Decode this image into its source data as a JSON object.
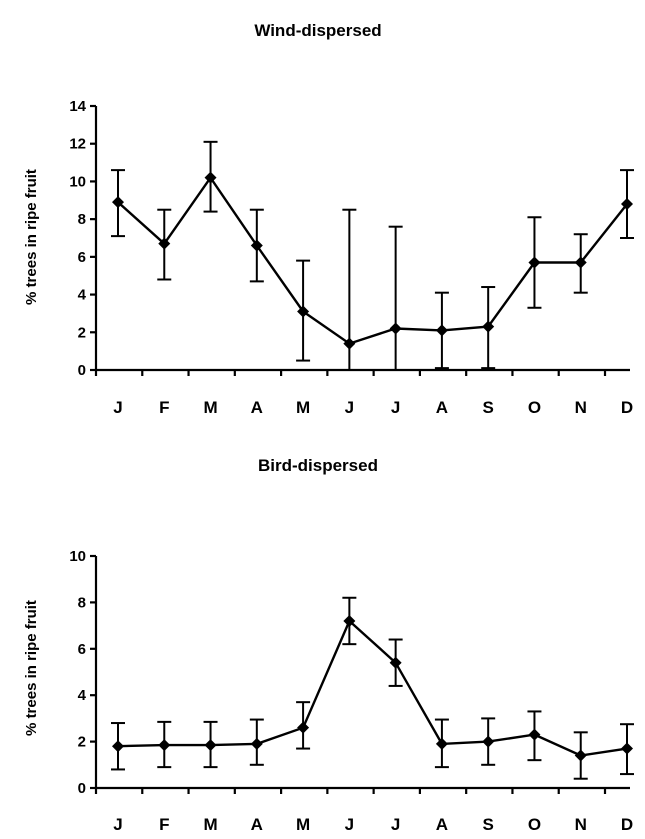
{
  "chart_data": [
    {
      "type": "line",
      "title": "Wind-dispersed",
      "ylabel": "% trees in ripe fruit",
      "xlabel": "",
      "categories": [
        "J",
        "F",
        "M",
        "A",
        "M",
        "J",
        "J",
        "A",
        "S",
        "O",
        "N",
        "D"
      ],
      "values": [
        8.9,
        6.7,
        10.2,
        6.6,
        3.1,
        1.4,
        2.2,
        2.1,
        2.3,
        5.7,
        5.7,
        8.8
      ],
      "error_lower": [
        7.1,
        4.8,
        8.4,
        4.7,
        0.5,
        0,
        0,
        0.1,
        0.1,
        3.3,
        4.1,
        7.0
      ],
      "error_upper": [
        10.6,
        8.5,
        12.1,
        8.5,
        5.8,
        8.5,
        7.6,
        4.1,
        4.4,
        8.1,
        7.2,
        10.6
      ],
      "ylim": [
        0,
        14
      ],
      "yticks": [
        0,
        2,
        4,
        6,
        8,
        10,
        12,
        14
      ],
      "grid": false,
      "marker": "diamond"
    },
    {
      "type": "line",
      "title": "Bird-dispersed",
      "ylabel": "% trees in ripe fruit",
      "xlabel": "",
      "categories": [
        "J",
        "F",
        "M",
        "A",
        "M",
        "J",
        "J",
        "A",
        "S",
        "O",
        "N",
        "D"
      ],
      "values": [
        1.8,
        1.85,
        1.85,
        1.9,
        2.6,
        7.2,
        5.4,
        1.9,
        2.0,
        2.3,
        1.4,
        1.7
      ],
      "error_lower": [
        0.8,
        0.9,
        0.9,
        1.0,
        1.7,
        6.2,
        4.4,
        0.9,
        1.0,
        1.2,
        0.4,
        0.6
      ],
      "error_upper": [
        2.8,
        2.85,
        2.85,
        2.95,
        3.7,
        8.2,
        6.4,
        2.95,
        3.0,
        3.3,
        2.4,
        2.75
      ],
      "ylim": [
        0,
        10
      ],
      "yticks": [
        0,
        2,
        4,
        6,
        8,
        10
      ],
      "grid": false,
      "marker": "diamond"
    }
  ]
}
